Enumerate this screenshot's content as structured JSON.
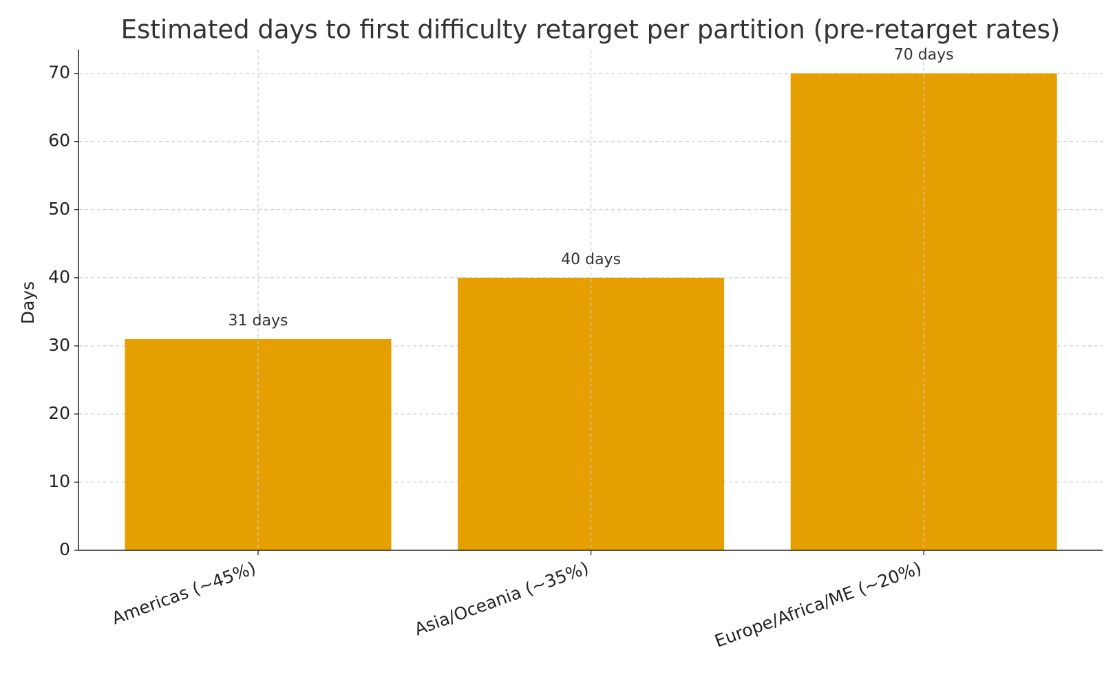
{
  "chart_data": {
    "type": "bar",
    "title": "Estimated days to first difficulty retarget per partition (pre-retarget rates)",
    "y_label": "Days",
    "categories": [
      "Americas (~45%)",
      "Asia/Oceania (~35%)",
      "Europe/Africa/ME (~20%)"
    ],
    "values": [
      31,
      40,
      70
    ],
    "value_labels": [
      "31 days",
      "40 days",
      "70 days"
    ],
    "color": "#e69f00",
    "ylim": [
      0,
      73.5
    ],
    "yticks": [
      0,
      10,
      20,
      30,
      40,
      50,
      60,
      70
    ],
    "grid": true
  }
}
